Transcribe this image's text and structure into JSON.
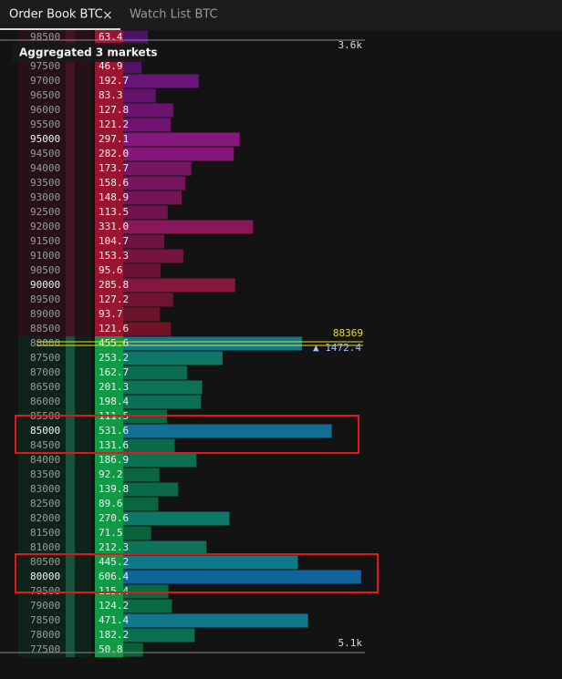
{
  "tabs": [
    "Order Book BTC",
    "Watch List BTC"
  ],
  "overlay": "Aggregated 3 markets",
  "top_depth": "3.6k",
  "bottom_depth": "5.1k",
  "last_price": "88369",
  "spread_label": "▲ 1472.4",
  "rows": [
    [
      "98500",
      "63.4"
    ],
    [
      "97500",
      "46.9"
    ],
    [
      "97000",
      "192.7"
    ],
    [
      "96500",
      "83.3"
    ],
    [
      "96000",
      "127.8"
    ],
    [
      "95500",
      "121.2"
    ],
    [
      "95000",
      "297.1"
    ],
    [
      "94500",
      "282.0"
    ],
    [
      "94000",
      "173.7"
    ],
    [
      "93500",
      "158.6"
    ],
    [
      "93000",
      "148.9"
    ],
    [
      "92500",
      "113.5"
    ],
    [
      "92000",
      "331.0"
    ],
    [
      "91500",
      "104.7"
    ],
    [
      "91000",
      "153.3"
    ],
    [
      "90500",
      "95.6"
    ],
    [
      "90000",
      "285.8"
    ],
    [
      "89500",
      "127.2"
    ],
    [
      "89000",
      "93.7"
    ],
    [
      "88500",
      "121.6"
    ],
    [
      "88000",
      "455.6"
    ],
    [
      "87500",
      "253.2"
    ],
    [
      "87000",
      "162.7"
    ],
    [
      "86500",
      "201.3"
    ],
    [
      "86000",
      "198.4"
    ],
    [
      "85500",
      "111.5"
    ],
    [
      "85000",
      "531.6"
    ],
    [
      "84500",
      "131.6"
    ],
    [
      "84000",
      "186.9"
    ],
    [
      "83500",
      "92.2"
    ],
    [
      "83000",
      "139.8"
    ],
    [
      "82500",
      "89.6"
    ],
    [
      "82000",
      "270.6"
    ],
    [
      "81500",
      "71.5"
    ],
    [
      "81000",
      "212.3"
    ],
    [
      "80500",
      "445.2"
    ],
    [
      "80000",
      "606.4"
    ],
    [
      "79500",
      "115.4"
    ],
    [
      "79000",
      "124.2"
    ],
    [
      "78500",
      "471.4"
    ],
    [
      "78000",
      "182.2"
    ],
    [
      "77500",
      "50.8"
    ]
  ]
}
